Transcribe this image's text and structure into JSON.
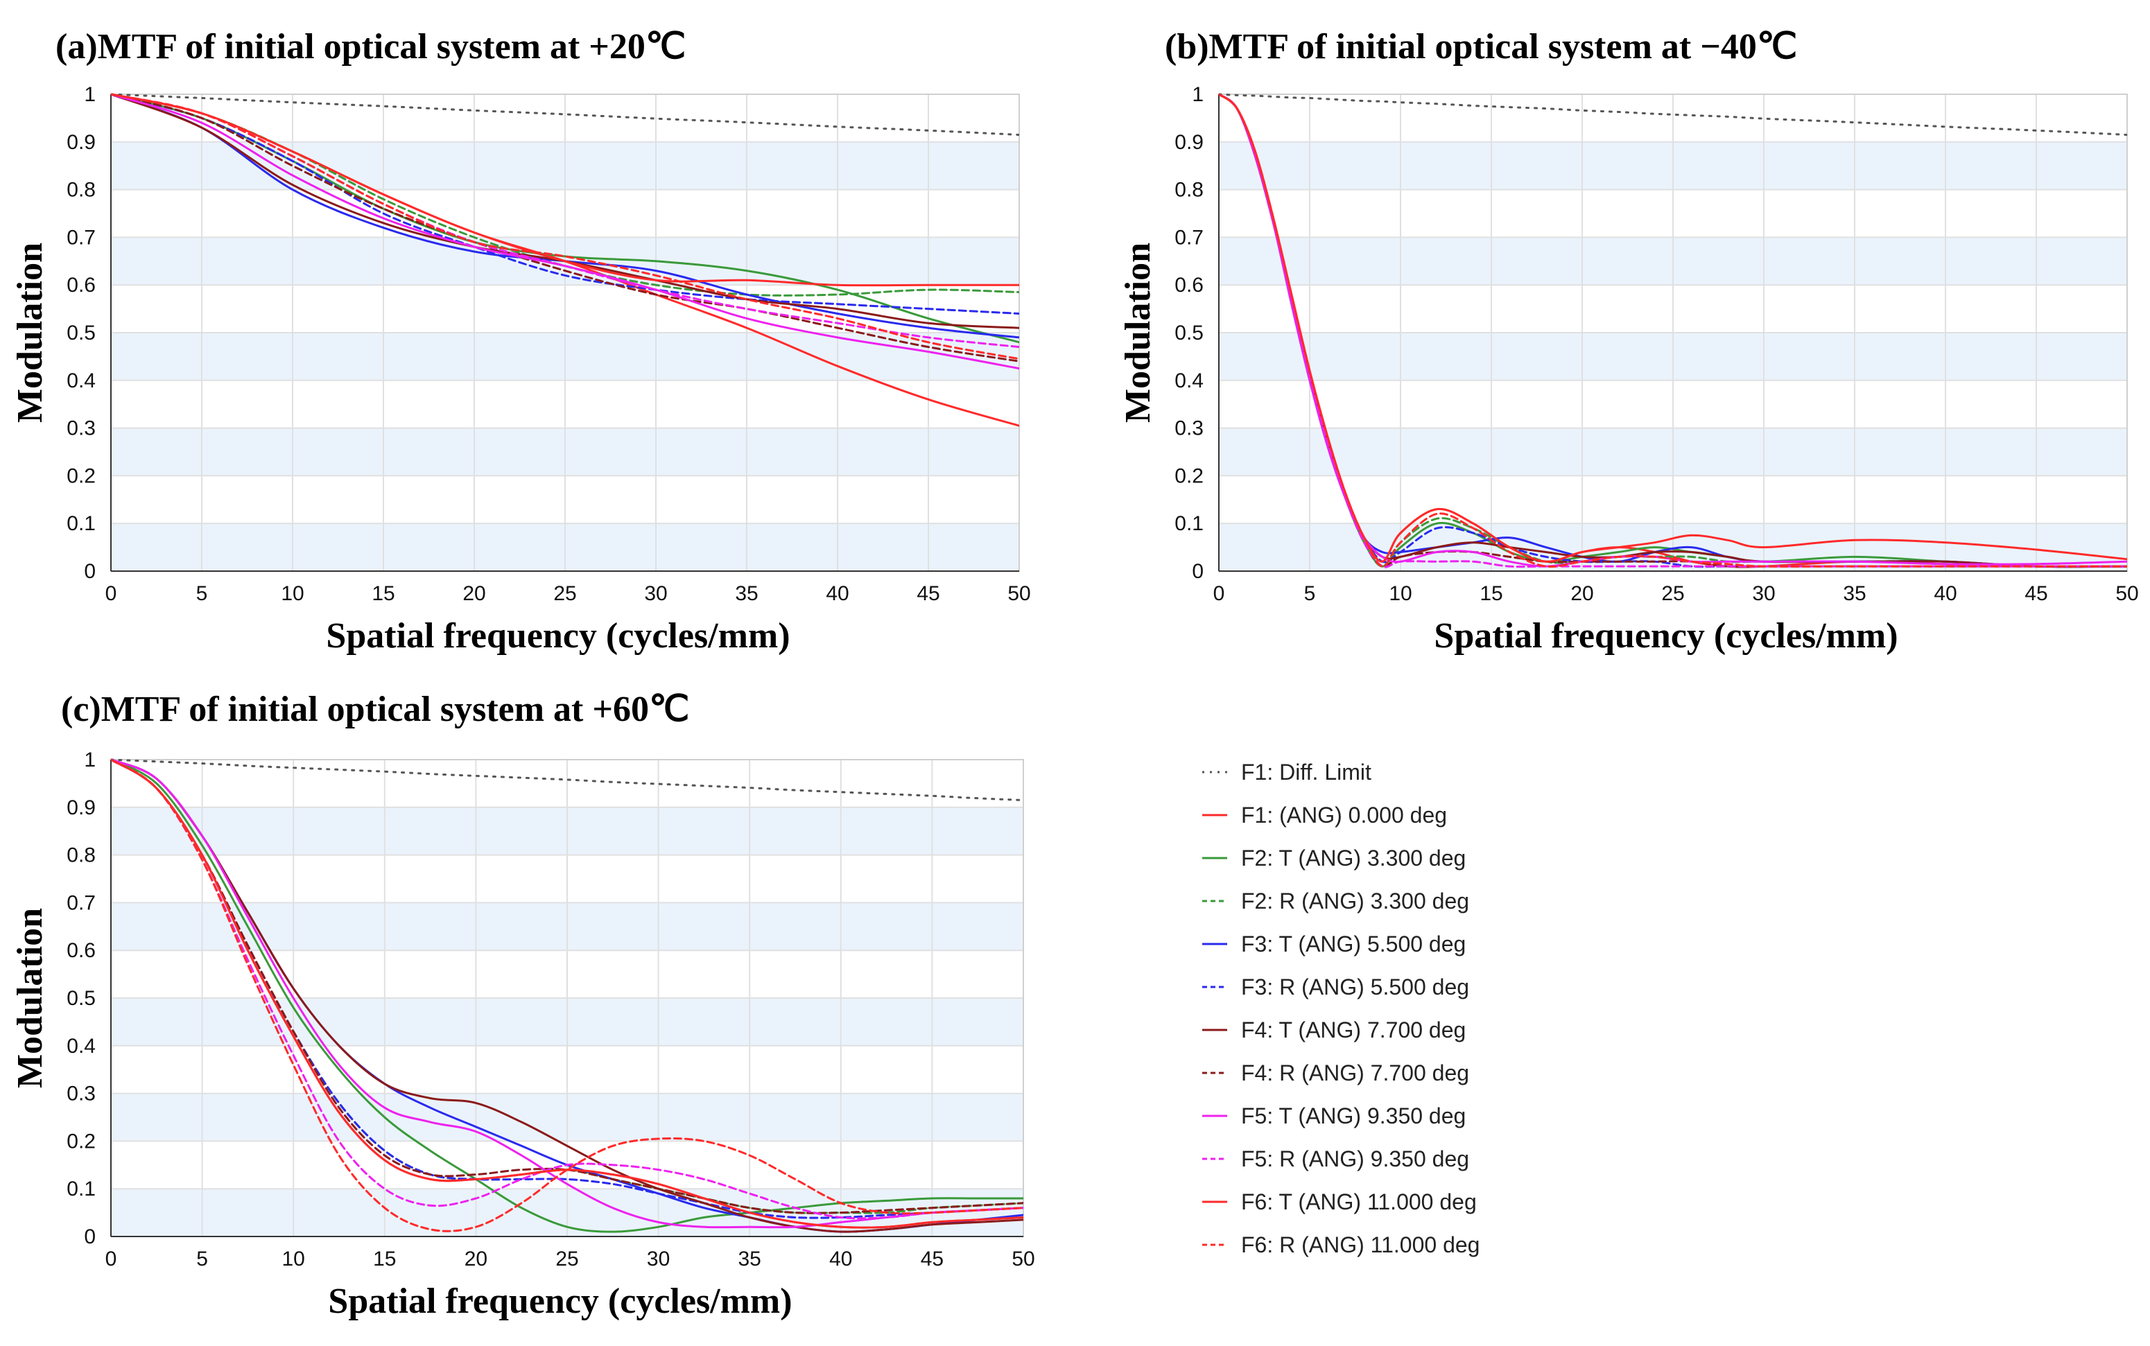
{
  "colors": {
    "band": "#eaf3fc",
    "grid": "#e0e0e0",
    "axis": "#333333",
    "diff": "#555555",
    "red": "#ff2a2a",
    "green": "#3a9a3a",
    "blue": "#2a2aee",
    "brown": "#8b1a1a",
    "magenta": "#ee22ee"
  },
  "legend": [
    {
      "label": "F1: Diff. Limit",
      "color": "#555555",
      "dash": "dotted"
    },
    {
      "label": "F1: (ANG) 0.000 deg",
      "color": "#ff2a2a",
      "dash": "solid"
    },
    {
      "label": "F2: T (ANG) 3.300 deg",
      "color": "#3a9a3a",
      "dash": "solid"
    },
    {
      "label": "F2: R (ANG) 3.300 deg",
      "color": "#3a9a3a",
      "dash": "dashed"
    },
    {
      "label": "F3: T (ANG) 5.500 deg",
      "color": "#2a2aee",
      "dash": "solid"
    },
    {
      "label": "F3: R (ANG) 5.500 deg",
      "color": "#2a2aee",
      "dash": "dashed"
    },
    {
      "label": "F4: T (ANG) 7.700 deg",
      "color": "#8b1a1a",
      "dash": "solid"
    },
    {
      "label": "F4: R (ANG) 7.700 deg",
      "color": "#8b1a1a",
      "dash": "dashed"
    },
    {
      "label": "F5: T (ANG) 9.350 deg",
      "color": "#ee22ee",
      "dash": "solid"
    },
    {
      "label": "F5: R (ANG) 9.350 deg",
      "color": "#ee22ee",
      "dash": "dashed"
    },
    {
      "label": "F6: T (ANG) 11.000 deg",
      "color": "#ff2a2a",
      "dash": "solid"
    },
    {
      "label": "F6: R (ANG) 11.000 deg",
      "color": "#ff2a2a",
      "dash": "dashed"
    }
  ],
  "chart_data": [
    {
      "type": "line",
      "title": "(a)MTF of initial optical system at +20℃",
      "xlabel": "Spatial frequency (cycles/mm)",
      "ylabel": "Modulation",
      "xlim": [
        0,
        50
      ],
      "ylim": [
        0,
        1
      ],
      "xticks": [
        "0",
        "5",
        "10",
        "15",
        "20",
        "25",
        "30",
        "35",
        "40",
        "45",
        "50"
      ],
      "yticks": [
        "0",
        "0.1",
        "0.2",
        "0.3",
        "0.4",
        "0.5",
        "0.6",
        "0.7",
        "0.8",
        "0.9",
        "1"
      ],
      "grid": true,
      "x": [
        0,
        5,
        10,
        15,
        20,
        25,
        30,
        35,
        40,
        45,
        50
      ],
      "series": [
        {
          "name": "F1: Diff. Limit",
          "values": [
            1,
            0.992,
            0.983,
            0.975,
            0.966,
            0.958,
            0.949,
            0.941,
            0.932,
            0.924,
            0.915
          ]
        },
        {
          "name": "F1: (ANG) 0.000 deg",
          "values": [
            1,
            0.96,
            0.88,
            0.79,
            0.71,
            0.65,
            0.58,
            0.51,
            0.43,
            0.36,
            0.305
          ]
        },
        {
          "name": "F2: T (ANG) 3.300 deg",
          "values": [
            1,
            0.95,
            0.86,
            0.76,
            0.69,
            0.66,
            0.65,
            0.63,
            0.59,
            0.53,
            0.48
          ]
        },
        {
          "name": "F2: R (ANG) 3.300 deg",
          "values": [
            1,
            0.96,
            0.88,
            0.78,
            0.7,
            0.64,
            0.6,
            0.58,
            0.58,
            0.59,
            0.585
          ]
        },
        {
          "name": "F3: T (ANG) 5.500 deg",
          "values": [
            1,
            0.93,
            0.8,
            0.72,
            0.67,
            0.65,
            0.63,
            0.58,
            0.54,
            0.51,
            0.49
          ]
        },
        {
          "name": "F3: R (ANG) 5.500 deg",
          "values": [
            1,
            0.95,
            0.86,
            0.75,
            0.68,
            0.62,
            0.59,
            0.57,
            0.56,
            0.55,
            0.54
          ]
        },
        {
          "name": "F4: T (ANG) 7.700 deg",
          "values": [
            1,
            0.93,
            0.81,
            0.73,
            0.68,
            0.65,
            0.61,
            0.57,
            0.55,
            0.52,
            0.51
          ]
        },
        {
          "name": "F4: R (ANG) 7.700 deg",
          "values": [
            1,
            0.95,
            0.85,
            0.76,
            0.69,
            0.63,
            0.58,
            0.55,
            0.51,
            0.47,
            0.44
          ]
        },
        {
          "name": "F5: T (ANG) 9.350 deg",
          "values": [
            1,
            0.94,
            0.83,
            0.74,
            0.68,
            0.64,
            0.59,
            0.53,
            0.49,
            0.46,
            0.425
          ]
        },
        {
          "name": "F5: R (ANG) 9.350 deg",
          "values": [
            1,
            0.96,
            0.87,
            0.77,
            0.69,
            0.64,
            0.59,
            0.55,
            0.52,
            0.49,
            0.47
          ]
        },
        {
          "name": "F6: T (ANG) 11.000 deg",
          "values": [
            1,
            0.96,
            0.88,
            0.79,
            0.71,
            0.65,
            0.61,
            0.61,
            0.6,
            0.6,
            0.6
          ]
        },
        {
          "name": "F6: R (ANG) 11.000 deg",
          "values": [
            1,
            0.96,
            0.87,
            0.77,
            0.69,
            0.66,
            0.62,
            0.57,
            0.53,
            0.48,
            0.445
          ]
        }
      ]
    },
    {
      "type": "line",
      "title": "(b)MTF of initial optical system at −40℃",
      "xlabel": "Spatial frequency (cycles/mm)",
      "ylabel": "Modulation",
      "xlim": [
        0,
        50
      ],
      "ylim": [
        0,
        1
      ],
      "xticks": [
        "0",
        "5",
        "10",
        "15",
        "20",
        "25",
        "30",
        "35",
        "40",
        "45",
        "50"
      ],
      "yticks": [
        "0",
        "0.1",
        "0.2",
        "0.3",
        "0.4",
        "0.5",
        "0.6",
        "0.7",
        "0.8",
        "0.9",
        "1"
      ],
      "grid": true,
      "x": [
        0,
        1,
        2,
        3,
        4,
        5,
        6,
        7,
        8,
        9,
        10,
        12,
        14,
        16,
        18,
        20,
        22,
        24,
        26,
        28,
        30,
        35,
        40,
        45,
        50
      ],
      "series": [
        {
          "name": "F1: Diff. Limit",
          "values": [
            1,
            0.998,
            0.997,
            0.995,
            0.993,
            0.992,
            0.99,
            0.988,
            0.986,
            0.985,
            0.983,
            0.98,
            0.976,
            0.973,
            0.97,
            0.966,
            0.963,
            0.959,
            0.956,
            0.953,
            0.949,
            0.941,
            0.932,
            0.924,
            0.915
          ]
        },
        {
          "name": "F1: (ANG) 0.000 deg",
          "values": [
            1,
            0.97,
            0.88,
            0.74,
            0.58,
            0.42,
            0.28,
            0.16,
            0.07,
            0.02,
            0.08,
            0.13,
            0.1,
            0.05,
            0.02,
            0.04,
            0.05,
            0.04,
            0.02,
            0.01,
            0.01,
            0.02,
            0.015,
            0.01,
            0.01
          ]
        },
        {
          "name": "F2: T (ANG) 3.300 deg",
          "values": [
            1,
            0.97,
            0.87,
            0.73,
            0.57,
            0.41,
            0.27,
            0.15,
            0.06,
            0.01,
            0.05,
            0.1,
            0.08,
            0.04,
            0.02,
            0.03,
            0.04,
            0.05,
            0.04,
            0.03,
            0.02,
            0.03,
            0.02,
            0.01,
            0.01
          ]
        },
        {
          "name": "F2: R (ANG) 3.300 deg",
          "values": [
            1,
            0.97,
            0.87,
            0.73,
            0.57,
            0.41,
            0.27,
            0.15,
            0.06,
            0.01,
            0.06,
            0.11,
            0.09,
            0.05,
            0.02,
            0.02,
            0.03,
            0.03,
            0.03,
            0.02,
            0.02,
            0.02,
            0.02,
            0.01,
            0.01
          ]
        },
        {
          "name": "F3: T (ANG) 5.500 deg",
          "values": [
            1,
            0.97,
            0.87,
            0.73,
            0.56,
            0.4,
            0.26,
            0.15,
            0.07,
            0.04,
            0.04,
            0.05,
            0.06,
            0.07,
            0.05,
            0.03,
            0.02,
            0.04,
            0.05,
            0.03,
            0.02,
            0.02,
            0.02,
            0.01,
            0.01
          ]
        },
        {
          "name": "F3: R (ANG) 5.500 deg",
          "values": [
            1,
            0.97,
            0.87,
            0.73,
            0.57,
            0.41,
            0.27,
            0.15,
            0.07,
            0.02,
            0.04,
            0.09,
            0.08,
            0.05,
            0.03,
            0.02,
            0.02,
            0.02,
            0.01,
            0.01,
            0.01,
            0.01,
            0.01,
            0.01,
            0.01
          ]
        },
        {
          "name": "F4: T (ANG) 7.700 deg",
          "values": [
            1,
            0.97,
            0.87,
            0.73,
            0.57,
            0.41,
            0.27,
            0.15,
            0.07,
            0.03,
            0.03,
            0.05,
            0.06,
            0.05,
            0.04,
            0.03,
            0.03,
            0.04,
            0.04,
            0.03,
            0.02,
            0.02,
            0.02,
            0.01,
            0.01
          ]
        },
        {
          "name": "F4: R (ANG) 7.700 deg",
          "values": [
            1,
            0.97,
            0.87,
            0.73,
            0.57,
            0.41,
            0.27,
            0.15,
            0.06,
            0.01,
            0.03,
            0.04,
            0.04,
            0.03,
            0.02,
            0.02,
            0.02,
            0.02,
            0.02,
            0.01,
            0.01,
            0.01,
            0.01,
            0.01,
            0.01
          ]
        },
        {
          "name": "F5: T (ANG) 9.350 deg",
          "values": [
            1,
            0.97,
            0.87,
            0.73,
            0.56,
            0.4,
            0.26,
            0.15,
            0.07,
            0.03,
            0.02,
            0.04,
            0.04,
            0.02,
            0.01,
            0.02,
            0.03,
            0.03,
            0.02,
            0.02,
            0.02,
            0.02,
            0.015,
            0.015,
            0.02
          ]
        },
        {
          "name": "F5: R (ANG) 9.350 deg",
          "values": [
            1,
            0.97,
            0.87,
            0.73,
            0.57,
            0.41,
            0.27,
            0.15,
            0.06,
            0.01,
            0.02,
            0.02,
            0.02,
            0.01,
            0.01,
            0.01,
            0.01,
            0.01,
            0.01,
            0.01,
            0.01,
            0.01,
            0.01,
            0.01,
            0.01
          ]
        },
        {
          "name": "F6: T (ANG) 11.000 deg",
          "values": [
            1,
            0.97,
            0.88,
            0.74,
            0.58,
            0.42,
            0.28,
            0.16,
            0.07,
            0.02,
            0.08,
            0.13,
            0.1,
            0.05,
            0.02,
            0.04,
            0.05,
            0.06,
            0.075,
            0.065,
            0.05,
            0.065,
            0.06,
            0.045,
            0.025
          ]
        },
        {
          "name": "F6: R (ANG) 11.000 deg",
          "values": [
            1,
            0.97,
            0.88,
            0.74,
            0.58,
            0.42,
            0.28,
            0.16,
            0.07,
            0.01,
            0.06,
            0.12,
            0.09,
            0.04,
            0.01,
            0.02,
            0.03,
            0.03,
            0.02,
            0.015,
            0.01,
            0.01,
            0.01,
            0.01,
            0.01
          ]
        }
      ]
    },
    {
      "type": "line",
      "title": "(c)MTF of initial optical system at +60℃",
      "xlabel": "Spatial frequency (cycles/mm)",
      "ylabel": "Modulation",
      "xlim": [
        0,
        50
      ],
      "ylim": [
        0,
        1
      ],
      "xticks": [
        "0",
        "5",
        "10",
        "15",
        "20",
        "25",
        "30",
        "35",
        "40",
        "45",
        "50"
      ],
      "yticks": [
        "0",
        "0.1",
        "0.2",
        "0.3",
        "0.4",
        "0.5",
        "0.6",
        "0.7",
        "0.8",
        "0.9",
        "1"
      ],
      "grid": true,
      "x": [
        0,
        2.5,
        5,
        7.5,
        10,
        12.5,
        15,
        17.5,
        20,
        22.5,
        25,
        27.5,
        30,
        32.5,
        35,
        37.5,
        40,
        42.5,
        45,
        47.5,
        50
      ],
      "series": [
        {
          "name": "F1: Diff. Limit",
          "values": [
            1,
            0.996,
            0.992,
            0.987,
            0.983,
            0.979,
            0.975,
            0.97,
            0.966,
            0.962,
            0.958,
            0.953,
            0.949,
            0.945,
            0.941,
            0.936,
            0.932,
            0.928,
            0.924,
            0.919,
            0.915
          ]
        },
        {
          "name": "F1: (ANG) 0.000 deg",
          "values": [
            1,
            0.94,
            0.8,
            0.6,
            0.42,
            0.26,
            0.16,
            0.12,
            0.12,
            0.13,
            0.14,
            0.13,
            0.11,
            0.08,
            0.05,
            0.03,
            0.02,
            0.02,
            0.03,
            0.035,
            0.04
          ]
        },
        {
          "name": "F2: T (ANG) 3.300 deg",
          "values": [
            1,
            0.95,
            0.82,
            0.65,
            0.48,
            0.35,
            0.25,
            0.18,
            0.12,
            0.06,
            0.02,
            0.01,
            0.02,
            0.04,
            0.05,
            0.06,
            0.07,
            0.075,
            0.08,
            0.08,
            0.08
          ]
        },
        {
          "name": "F2: R (ANG) 3.300 deg",
          "values": [
            1,
            0.94,
            0.8,
            0.61,
            0.43,
            0.28,
            0.18,
            0.13,
            0.12,
            0.13,
            0.14,
            0.12,
            0.1,
            0.08,
            0.06,
            0.05,
            0.05,
            0.05,
            0.06,
            0.065,
            0.07
          ]
        },
        {
          "name": "F3: T (ANG) 5.500 deg",
          "values": [
            1,
            0.96,
            0.84,
            0.68,
            0.52,
            0.4,
            0.32,
            0.27,
            0.23,
            0.19,
            0.15,
            0.12,
            0.09,
            0.06,
            0.04,
            0.02,
            0.01,
            0.015,
            0.025,
            0.035,
            0.045
          ]
        },
        {
          "name": "F3: R (ANG) 5.500 deg",
          "values": [
            1,
            0.94,
            0.8,
            0.61,
            0.43,
            0.28,
            0.18,
            0.13,
            0.12,
            0.12,
            0.12,
            0.11,
            0.09,
            0.07,
            0.05,
            0.04,
            0.04,
            0.045,
            0.05,
            0.055,
            0.06
          ]
        },
        {
          "name": "F4: T (ANG) 7.700 deg",
          "values": [
            1,
            0.96,
            0.84,
            0.68,
            0.52,
            0.4,
            0.32,
            0.29,
            0.28,
            0.24,
            0.19,
            0.14,
            0.1,
            0.07,
            0.04,
            0.02,
            0.01,
            0.015,
            0.025,
            0.03,
            0.035
          ]
        },
        {
          "name": "F4: R (ANG) 7.700 deg",
          "values": [
            1,
            0.94,
            0.8,
            0.61,
            0.43,
            0.27,
            0.17,
            0.13,
            0.13,
            0.14,
            0.14,
            0.12,
            0.1,
            0.08,
            0.06,
            0.05,
            0.05,
            0.055,
            0.06,
            0.065,
            0.07
          ]
        },
        {
          "name": "F5: T (ANG) 9.350 deg",
          "values": [
            1,
            0.96,
            0.84,
            0.67,
            0.5,
            0.36,
            0.27,
            0.24,
            0.22,
            0.17,
            0.11,
            0.06,
            0.03,
            0.02,
            0.02,
            0.02,
            0.03,
            0.04,
            0.05,
            0.055,
            0.06
          ]
        },
        {
          "name": "F5: R (ANG) 9.350 deg",
          "values": [
            1,
            0.94,
            0.79,
            0.58,
            0.38,
            0.2,
            0.1,
            0.065,
            0.08,
            0.12,
            0.15,
            0.15,
            0.14,
            0.12,
            0.09,
            0.06,
            0.04,
            0.04,
            0.05,
            0.055,
            0.06
          ]
        },
        {
          "name": "F6: T (ANG) 11.000 deg",
          "values": [
            1,
            0.94,
            0.8,
            0.6,
            0.42,
            0.26,
            0.16,
            0.12,
            0.12,
            0.13,
            0.14,
            0.13,
            0.11,
            0.08,
            0.05,
            0.03,
            0.02,
            0.02,
            0.03,
            0.035,
            0.04
          ]
        },
        {
          "name": "F6: R (ANG) 11.000 deg",
          "values": [
            1,
            0.94,
            0.79,
            0.57,
            0.36,
            0.17,
            0.06,
            0.015,
            0.02,
            0.07,
            0.14,
            0.19,
            0.205,
            0.2,
            0.17,
            0.12,
            0.07,
            0.05,
            0.05,
            0.055,
            0.06
          ]
        }
      ]
    }
  ]
}
